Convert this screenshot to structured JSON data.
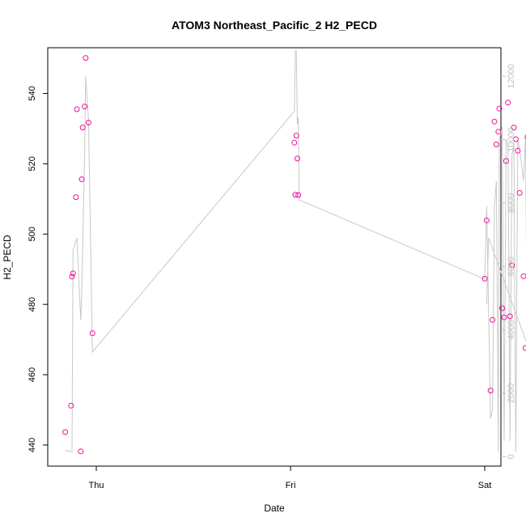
{
  "chart_data": {
    "type": "scatter",
    "title": "ATOM3 Northeast_Pacific_2 H2_PECD",
    "xlabel": "Date",
    "ylabel": "H2_PECD",
    "x_ticks": [
      "Thu",
      "Fri",
      "Sat"
    ],
    "ylim": [
      434,
      553
    ],
    "y_ticks": [
      440,
      460,
      480,
      500,
      520,
      540
    ],
    "y2_ticks": [
      0,
      2000,
      4000,
      6000,
      8000,
      10000,
      12000
    ],
    "y2lim": [
      -300,
      12900
    ],
    "grid": false,
    "colors": {
      "points": "#ee1199",
      "altitude_line": "#c8c8c8",
      "right_axis": "#c0c0c0"
    },
    "series": [
      {
        "role": "points",
        "x": [
          -0.16,
          -0.13,
          -0.125,
          -0.12,
          -0.105,
          -0.1,
          -0.08,
          -0.075,
          -0.07,
          -0.06,
          -0.055,
          -0.04,
          -0.02,
          1.02,
          1.025,
          1.03,
          1.035,
          1.04,
          2.0,
          2.01,
          2.03,
          2.04,
          2.05,
          2.06,
          2.07,
          2.075,
          2.09,
          2.1,
          2.11,
          2.12,
          2.13,
          2.14,
          2.15,
          2.16,
          2.17,
          2.18,
          2.2,
          2.21,
          2.22,
          2.23
        ],
        "y": [
          443.7,
          451.2,
          487.9,
          488.8,
          510.5,
          535.5,
          438.2,
          515.6,
          530.3,
          536.3,
          550.1,
          531.7,
          471.8,
          526.0,
          511.2,
          528.0,
          521.5,
          511.1,
          487.3,
          503.9,
          455.5,
          475.6,
          532.0,
          525.5,
          529.1,
          535.7,
          478.9,
          476.3,
          520.8,
          537.4,
          476.6,
          491.1,
          530.3,
          527.0,
          523.7,
          511.7,
          488.0,
          467.6,
          527.6,
          532.3
        ]
      },
      {
        "role": "altitude_line",
        "x": [
          -0.16,
          -0.13,
          -0.125,
          -0.12,
          -0.1,
          -0.08,
          -0.075,
          -0.06,
          -0.055,
          -0.04,
          -0.02,
          1.02,
          1.025,
          1.03,
          1.035,
          1.04,
          1.045,
          2.0,
          2.01,
          2.03,
          2.04,
          2.05,
          2.06,
          2.07,
          2.075,
          2.09,
          2.1,
          2.11,
          2.12,
          2.13,
          2.14,
          2.15,
          2.16,
          2.17,
          2.18,
          2.2,
          2.21,
          2.22,
          2.23,
          2.02,
          2.01
        ],
        "y": [
          200,
          150,
          150,
          6500,
          6900,
          4300,
          5200,
          9600,
          12000,
          10600,
          3300,
          10900,
          12800,
          12800,
          10500,
          10700,
          8100,
          5600,
          7900,
          1200,
          1500,
          7900,
          8700,
          150,
          10000,
          10400,
          500,
          10000,
          9800,
          500,
          9500,
          9900,
          150,
          10000,
          9700,
          8700,
          10100,
          1950,
          3350,
          6900,
          4800
        ]
      }
    ]
  }
}
